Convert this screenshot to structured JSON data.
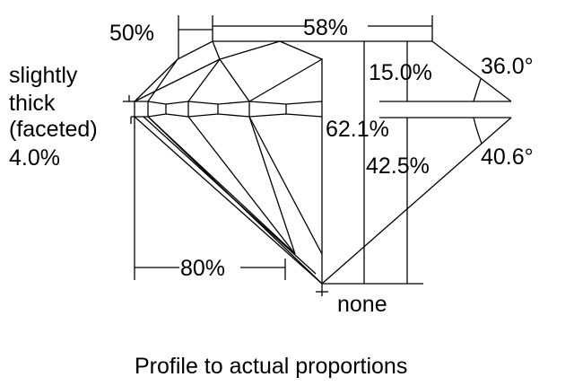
{
  "labels": {
    "girdle": [
      "slightly",
      "thick",
      "(faceted)",
      "4.0%"
    ],
    "table_width": "58%",
    "star_length": "50%",
    "lower_half": "80%",
    "total_depth": "62.1%",
    "crown_height": "15.0%",
    "pavilion_depth": "42.5%",
    "crown_angle": "36.0°",
    "pavilion_angle": "40.6°",
    "culet": "none"
  },
  "caption": "Profile to actual proportions"
}
